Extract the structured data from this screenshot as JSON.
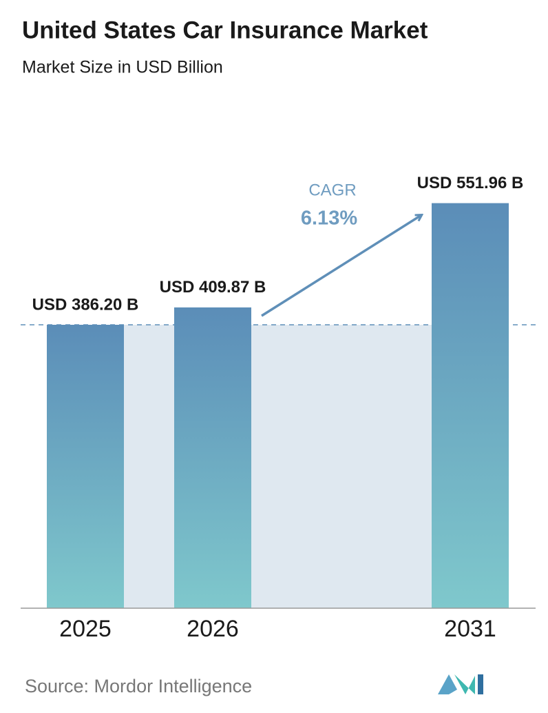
{
  "chart_data": {
    "type": "bar",
    "title": "United States Car Insurance Market",
    "subtitle": "Market Size in USD Billion",
    "categories": [
      "2025",
      "2026",
      "2031"
    ],
    "values": [
      386.2,
      409.87,
      551.96
    ],
    "value_labels": [
      "USD 386.20 B",
      "USD 409.87 B",
      "USD 551.96 B"
    ],
    "color": [
      "#5b8db8",
      "#7fc8cc"
    ],
    "cagr_label": "CAGR",
    "cagr_value": "6.13%",
    "source": "Source: Mordor Intelligence"
  }
}
